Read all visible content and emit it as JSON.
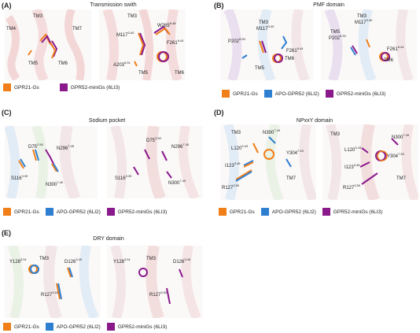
{
  "colors": {
    "gpr21": "#f07f1a",
    "apo": "#2f7fd0",
    "gpr52": "#8a1a8c"
  },
  "legend": {
    "gpr21": "GPR21-Gs",
    "apo": "APO-GPR52 (6LI2)",
    "gpr52": "GPR52-miniGs (6LI3)"
  },
  "panels": {
    "A": {
      "label": "(A)",
      "title": "Transmission swith",
      "left": {
        "tm4": "TM4",
        "tm3": "TM3",
        "tm7": "TM7",
        "tm5": "TM5",
        "tm6": "TM6"
      },
      "right": {
        "tm3": "TM3",
        "m117": "M117",
        "m117sup": "3.40",
        "w265": "W265",
        "w265sup": "6.48",
        "f261": "F261",
        "f261sup": "6.44",
        "a203": "A203",
        "a203sup": "5.51",
        "tm5": "TM5",
        "tm6": "TM6"
      }
    },
    "B": {
      "label": "(B)",
      "title": "PMF domain",
      "left": {
        "tm3": "TM3",
        "m117": "M117",
        "m117sup": "3.40",
        "p202": "P202",
        "p202sup": "5.50",
        "f261": "F261",
        "f261sup": "6.44",
        "tm6": "TM6",
        "tm5": "TM5"
      },
      "right": {
        "tm3": "TM3",
        "m117": "M117",
        "m117sup": "3.40",
        "tm5": "TM5",
        "p202": "P202",
        "p202sup": "5.50",
        "f261": "F261",
        "f261sup": "6.44",
        "tm6": "TM6"
      }
    },
    "C": {
      "label": "(C)",
      "title": "Sodium pocket",
      "left": {
        "d75": "D75",
        "d75sup": "2.50",
        "n296": "N296",
        "n296sup": "7.45",
        "s116": "S116",
        "s116sup": "3.39",
        "n300": "N300",
        "n300sup": "7.49"
      },
      "right": {
        "d75": "D75",
        "d75sup": "2.50",
        "n296": "N296",
        "n296sup": "7.45",
        "s116": "S116",
        "s116sup": "3.39",
        "n300": "N300",
        "n300sup": "7.49"
      }
    },
    "D": {
      "label": "(D)",
      "title": "NPxxY domain",
      "left": {
        "tm3": "TM3",
        "n300": "N300",
        "n300sup": "7.49",
        "l120": "L120",
        "l120sup": "3.43",
        "y304": "Y304",
        "y304sup": "7.53",
        "i123": "I123",
        "i123sup": "3.46",
        "r127": "R127",
        "r127sup": "3.50",
        "tm7": "TM7"
      },
      "right": {
        "tm3": "TM3",
        "n300": "N300",
        "n300sup": "7.49",
        "l120": "L120",
        "l120sup": "3.43",
        "y304": "Y304",
        "y304sup": "7.53",
        "i123": "I123",
        "i123sup": "3.46",
        "r127": "R127",
        "r127sup": "3.50",
        "tm7": "TM7"
      }
    },
    "E": {
      "label": "(E)",
      "title": "DRY domain",
      "left": {
        "y128": "Y128",
        "y128sup": "3.51",
        "tm3": "TM3",
        "d126": "D126",
        "d126sup": "3.49",
        "r127": "R127",
        "r127sup": "3.50"
      },
      "right": {
        "y128": "Y128",
        "y128sup": "3.51",
        "tm3": "TM3",
        "d126": "D126",
        "d126sup": "3.49",
        "r127": "R127",
        "r127sup": "3.50"
      }
    }
  }
}
